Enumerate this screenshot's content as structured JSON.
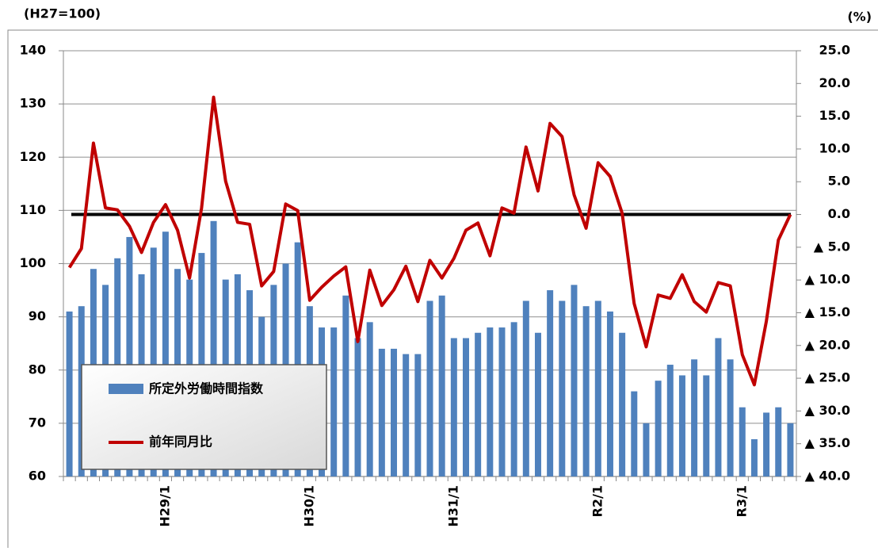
{
  "chart_data": {
    "type": "bar_line",
    "y_unit_label": "(H27=100)",
    "y2_unit_label": "(%)",
    "categories": [
      null,
      null,
      null,
      null,
      null,
      null,
      null,
      null,
      "H29/1",
      null,
      null,
      null,
      null,
      null,
      null,
      null,
      null,
      null,
      null,
      null,
      "H30/1",
      null,
      null,
      null,
      null,
      null,
      null,
      null,
      null,
      null,
      null,
      null,
      "H31/1",
      null,
      null,
      null,
      null,
      null,
      null,
      null,
      null,
      null,
      null,
      null,
      "R2/1",
      null,
      null,
      null,
      null,
      null,
      null,
      null,
      null,
      null,
      null,
      null,
      "R3/1",
      null,
      null,
      null,
      null
    ],
    "series": [
      {
        "name": "所定外労働時間指数",
        "kind": "bar",
        "color": "#4f81bd",
        "values": [
          91,
          92,
          99,
          96,
          101,
          105,
          98,
          103,
          106,
          99,
          97,
          102,
          108,
          97,
          98,
          95,
          90,
          96,
          100,
          104,
          92,
          88,
          88,
          94,
          86,
          89,
          84,
          84,
          83,
          83,
          93,
          94,
          86,
          86,
          87,
          88,
          88,
          89,
          93,
          87,
          95,
          93,
          96,
          92,
          93,
          91,
          87,
          76,
          70,
          78,
          81,
          79,
          82,
          79,
          86,
          82,
          73,
          67,
          72,
          73,
          70
        ]
      },
      {
        "name": "前年同月比",
        "kind": "line",
        "axis": "y2",
        "color": "#c00000",
        "values": [
          -8.1,
          -5.2,
          10.9,
          1.0,
          0.7,
          -1.8,
          -5.8,
          -1.2,
          1.5,
          -2.4,
          -9.7,
          1.0,
          17.9,
          5.1,
          -1.2,
          -1.5,
          -10.9,
          -8.7,
          1.6,
          0.6,
          -13.1,
          -11.1,
          -9.4,
          -8.0,
          -19.4,
          -8.5,
          -13.9,
          -11.5,
          -7.9,
          -13.3,
          -7.0,
          -9.7,
          -6.7,
          -2.4,
          -1.3,
          -6.3,
          1.0,
          0.2,
          10.3,
          3.6,
          13.9,
          11.9,
          3.0,
          -2.1,
          7.9,
          5.8,
          0.2,
          -13.6,
          -20.2,
          -12.3,
          -12.8,
          -9.2,
          -13.3,
          -14.9,
          -10.4,
          -10.9,
          -21.4,
          -26.0,
          -16.3,
          -3.9,
          0.0
        ]
      }
    ],
    "ylim": [
      60,
      140
    ],
    "yticks": [
      60,
      70,
      80,
      90,
      100,
      110,
      120,
      130,
      140
    ],
    "y2lim": [
      -40,
      25
    ],
    "y2ticks": [
      {
        "value": -40,
        "label": "▲ 40.0"
      },
      {
        "value": -35,
        "label": "▲ 35.0"
      },
      {
        "value": -30,
        "label": "▲ 30.0"
      },
      {
        "value": -25,
        "label": "▲ 25.0"
      },
      {
        "value": -20,
        "label": "▲ 20.0"
      },
      {
        "value": -15,
        "label": "▲ 15.0"
      },
      {
        "value": -10,
        "label": "▲ 10.0"
      },
      {
        "value": -5,
        "label": "▲ 5.0"
      },
      {
        "value": 0,
        "label": "0.0"
      },
      {
        "value": 5,
        "label": "5.0"
      },
      {
        "value": 10,
        "label": "10.0"
      },
      {
        "value": 15,
        "label": "15.0"
      },
      {
        "value": 20,
        "label": "20.0"
      },
      {
        "value": 25,
        "label": "25.0"
      }
    ],
    "y2_reference_line": 0,
    "grid": true,
    "legend": "lower-left"
  }
}
